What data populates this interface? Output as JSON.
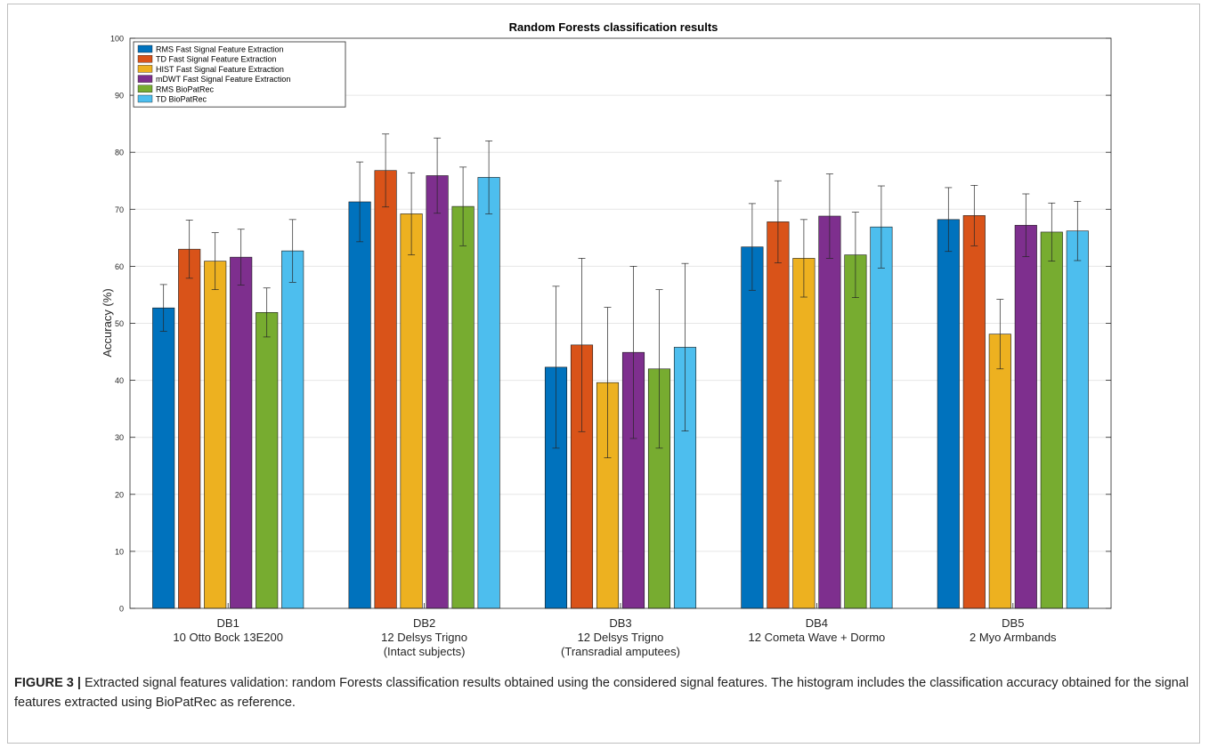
{
  "chart_data": {
    "type": "bar",
    "title": "Random Forests classification results",
    "xlabel": "",
    "ylabel": "Accuracy (%)",
    "ylim": [
      0,
      100
    ],
    "yticks": [
      0,
      10,
      20,
      30,
      40,
      50,
      60,
      70,
      80,
      90,
      100
    ],
    "grid": true,
    "legend_position": "top-left",
    "categories": [
      [
        "DB1",
        "10 Otto Bock 13E200"
      ],
      [
        "DB2",
        "12 Delsys Trigno",
        "(Intact subjects)"
      ],
      [
        "DB3",
        "12 Delsys Trigno",
        "(Transradial amputees)"
      ],
      [
        "DB4",
        "12 Cometa Wave + Dormo"
      ],
      [
        "DB5",
        "2 Myo Armbands"
      ]
    ],
    "series": [
      {
        "name": "RMS Fast Signal Feature Extraction",
        "color": "#0072BD",
        "values": [
          52.7,
          71.3,
          42.3,
          63.4,
          68.2
        ],
        "errors": [
          4.1,
          7.0,
          14.2,
          7.6,
          5.6
        ]
      },
      {
        "name": "TD Fast Signal Feature Extraction",
        "color": "#D95319",
        "values": [
          63.0,
          76.8,
          46.2,
          67.8,
          68.9
        ],
        "errors": [
          5.1,
          6.4,
          15.2,
          7.2,
          5.3
        ]
      },
      {
        "name": "HIST Fast Signal Feature Extraction",
        "color": "#EDB120",
        "values": [
          60.9,
          69.2,
          39.6,
          61.4,
          48.1
        ],
        "errors": [
          5.0,
          7.2,
          13.2,
          6.8,
          6.1
        ]
      },
      {
        "name": "mDWT Fast Signal Feature Extraction",
        "color": "#7E2F8E",
        "values": [
          61.6,
          75.9,
          44.9,
          68.8,
          67.2
        ],
        "errors": [
          4.9,
          6.6,
          15.1,
          7.4,
          5.5
        ]
      },
      {
        "name": "RMS BioPatRec",
        "color": "#77AC30",
        "values": [
          51.9,
          70.5,
          42.0,
          62.0,
          66.0
        ],
        "errors": [
          4.3,
          6.9,
          13.9,
          7.5,
          5.1
        ]
      },
      {
        "name": "TD BioPatRec",
        "color": "#4DBEEE",
        "values": [
          62.7,
          75.6,
          45.8,
          66.9,
          66.2
        ],
        "errors": [
          5.5,
          6.4,
          14.7,
          7.2,
          5.2
        ]
      }
    ]
  },
  "caption": {
    "label": "FIGURE 3 |",
    "text": " Extracted signal features validation: random Forests classification results obtained using the considered signal features. The histogram includes the classification accuracy obtained for the signal features extracted using BioPatRec as reference."
  }
}
